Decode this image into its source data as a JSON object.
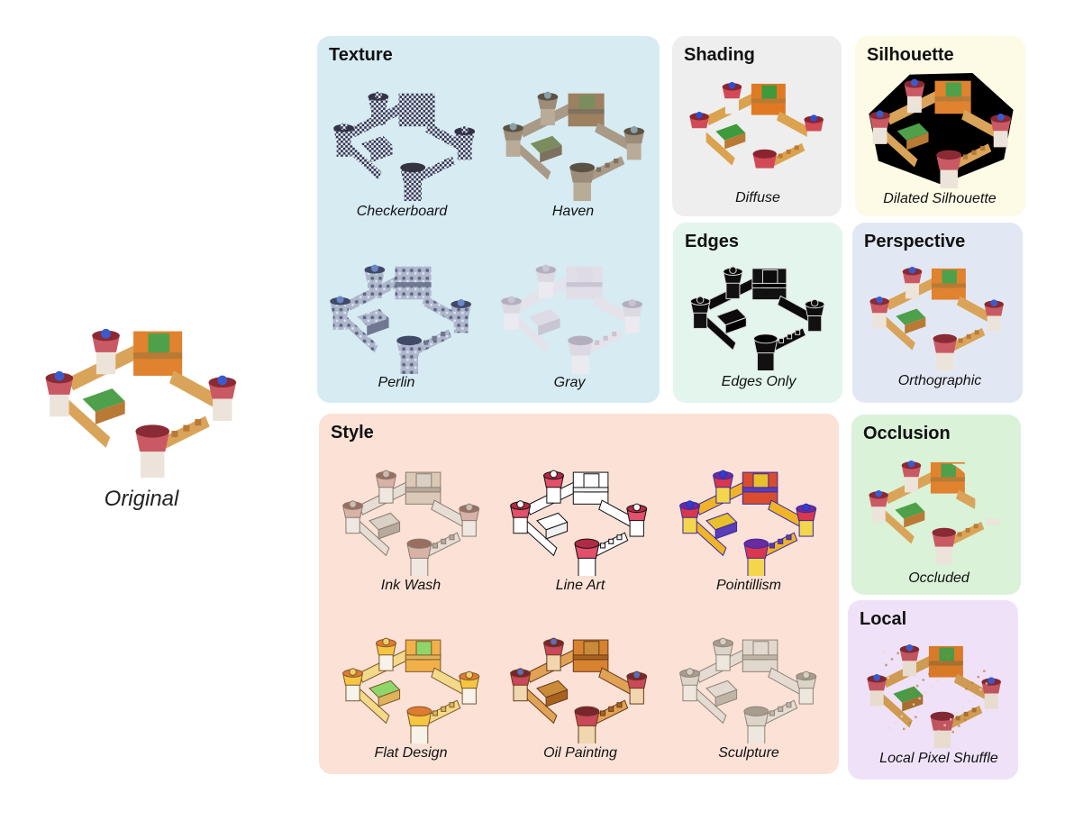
{
  "original": {
    "label": "Original"
  },
  "panels": {
    "texture": {
      "title": "Texture",
      "color": "#d6ebf2",
      "items": [
        {
          "label": "Checkerboard",
          "variant": "checker"
        },
        {
          "label": "Haven",
          "variant": "haven"
        },
        {
          "label": "Perlin",
          "variant": "perlin"
        },
        {
          "label": "Gray",
          "variant": "gray"
        }
      ]
    },
    "shading": {
      "title": "Shading",
      "color": "#eeeeee",
      "items": [
        {
          "label": "Diffuse",
          "variant": "diffuse"
        }
      ]
    },
    "silhouette": {
      "title": "Silhouette",
      "color": "#fdfbe6",
      "items": [
        {
          "label": "Dilated Silhouette",
          "variant": "silhouette"
        }
      ]
    },
    "edges": {
      "title": "Edges",
      "color": "#e3f5ec",
      "items": [
        {
          "label": "Edges Only",
          "variant": "edges"
        }
      ]
    },
    "perspective": {
      "title": "Perspective",
      "color": "#e2e8f3",
      "items": [
        {
          "label": "Orthographic",
          "variant": "ortho"
        }
      ]
    },
    "style": {
      "title": "Style",
      "color": "#fbe1d6",
      "items": [
        {
          "label": "Ink Wash",
          "variant": "ink"
        },
        {
          "label": "Line Art",
          "variant": "lineart"
        },
        {
          "label": "Pointillism",
          "variant": "pointillism"
        },
        {
          "label": "Flat Design",
          "variant": "flat"
        },
        {
          "label": "Oil Painting",
          "variant": "oil"
        },
        {
          "label": "Sculpture",
          "variant": "sculpture"
        }
      ]
    },
    "occlusion": {
      "title": "Occlusion",
      "color": "#d9f2d8",
      "items": [
        {
          "label": "Occluded",
          "variant": "occluded"
        }
      ]
    },
    "local": {
      "title": "Local",
      "color": "#efe2f8",
      "items": [
        {
          "label": "Local Pixel Shuffle",
          "variant": "local"
        }
      ]
    }
  }
}
